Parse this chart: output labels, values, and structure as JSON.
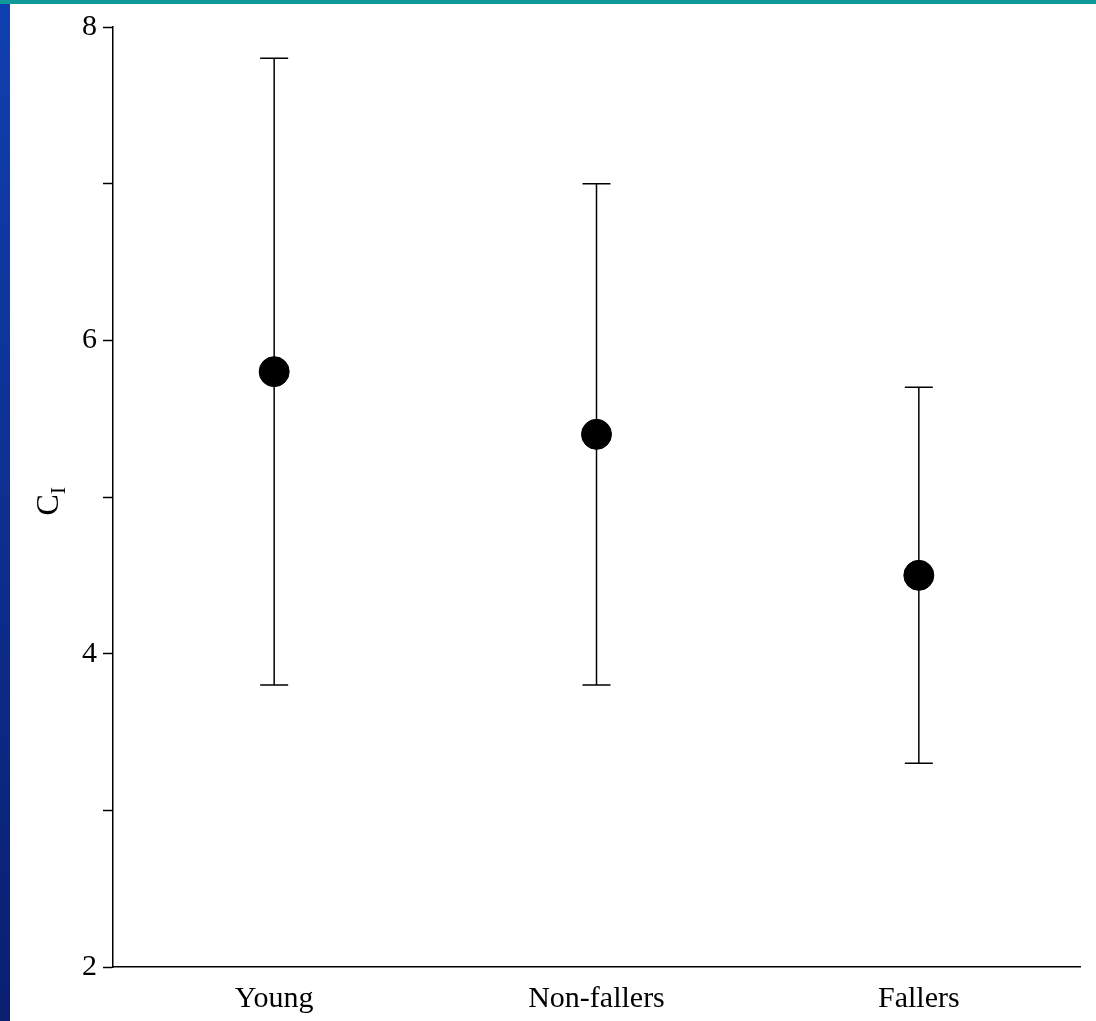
{
  "chart_data": {
    "type": "scatter",
    "ylabel": "C$_{I}$",
    "categories": [
      "Young",
      "Non-fallers",
      "Fallers"
    ],
    "series": [
      {
        "color": "#000000",
        "values": [
          5.8,
          5.4,
          4.5
        ],
        "errors": [
          [
            3.8,
            7.8
          ],
          [
            3.8,
            7.0
          ],
          [
            3.3,
            5.7
          ]
        ]
      }
    ],
    "ylim": [
      2,
      8
    ],
    "yticks": [
      2,
      {
        "value": 3,
        "label": null
      },
      4,
      {
        "value": 5,
        "label": null
      },
      6,
      {
        "value": 7,
        "label": null
      },
      8
    ],
    "grid": false,
    "legend": false,
    "marker": "circle"
  }
}
